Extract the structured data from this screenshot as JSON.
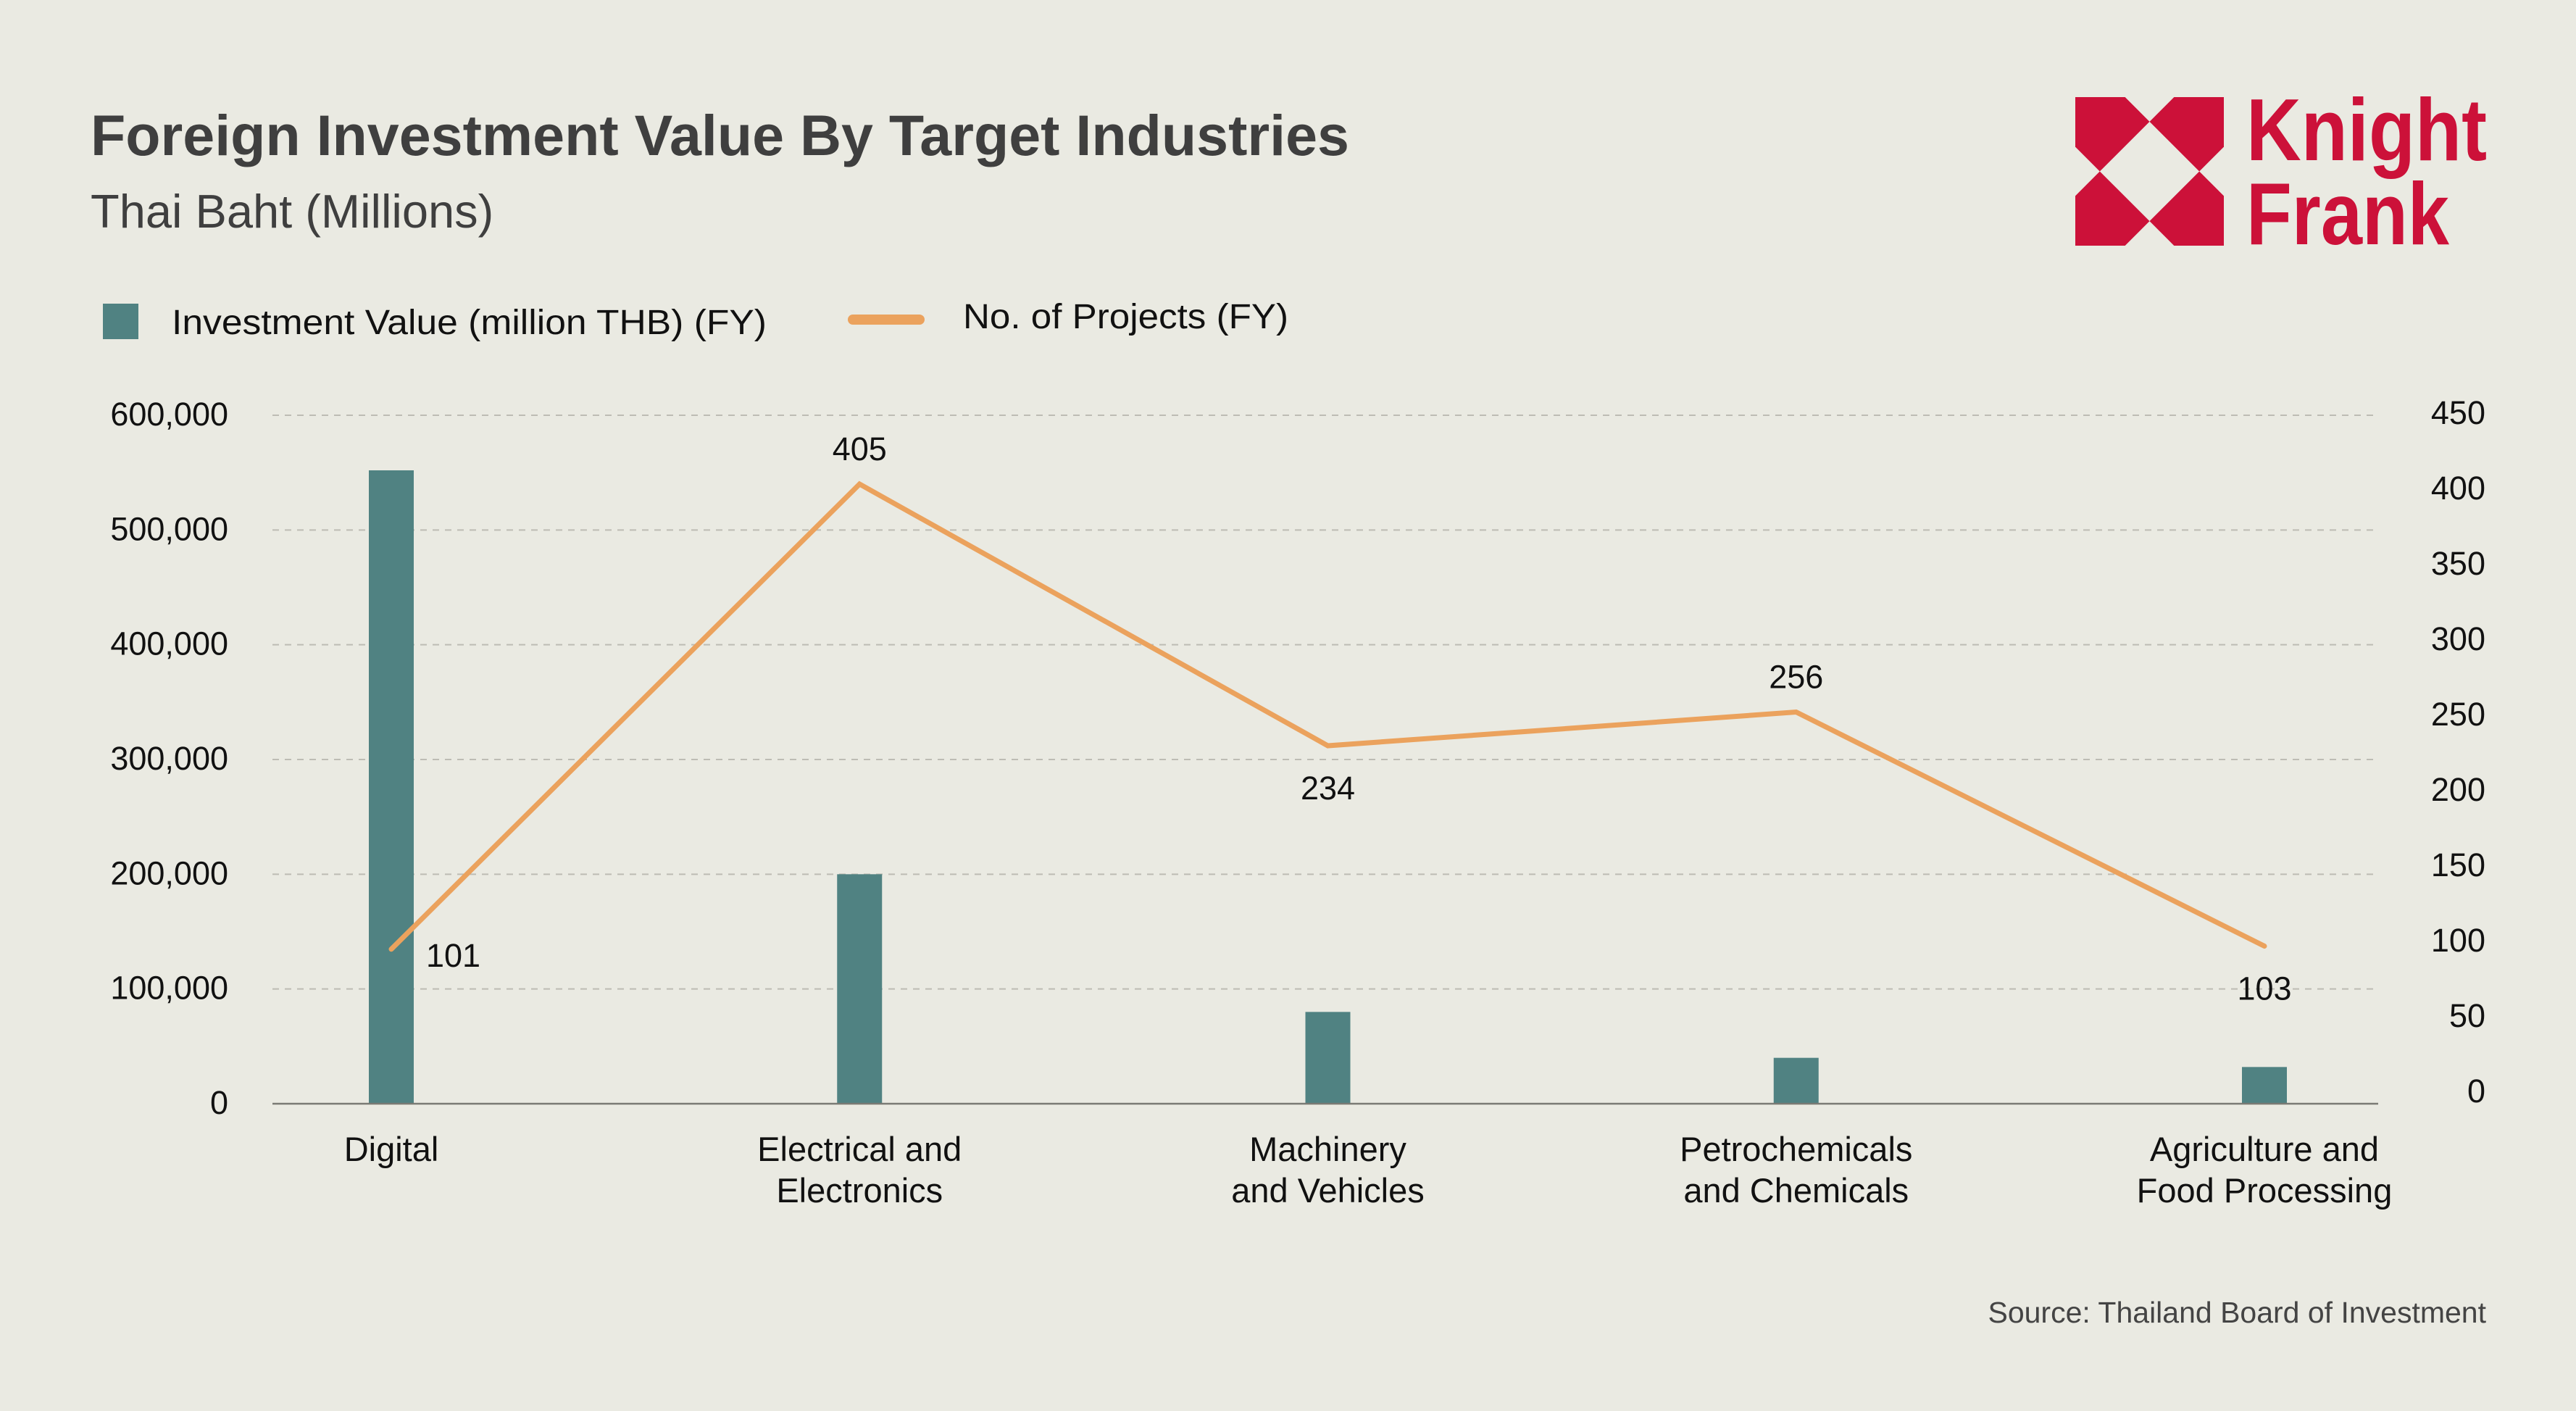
{
  "header": {
    "title": "Foreign Investment Value By Target Industries",
    "subtitle": "Thai Baht (Millions)"
  },
  "logo": {
    "line1": "Knight",
    "line2": "Frank",
    "color": "#cc1139"
  },
  "legend": [
    {
      "label": "Investment Value (million THB) (FY)",
      "type": "bar",
      "color": "#508282"
    },
    {
      "label": "No. of Projects (FY)",
      "type": "line",
      "color": "#eba25d"
    }
  ],
  "source": "Source: Thailand Board of Investment",
  "chart_data": {
    "type": "bar",
    "title": "Foreign Investment Value By Target Industries",
    "subtitle": "Thai Baht (Millions)",
    "categories": [
      [
        "Digital"
      ],
      [
        "Electrical and",
        "Electronics"
      ],
      [
        "Machinery",
        "and Vehicles"
      ],
      [
        "Petrochemicals",
        "and Chemicals"
      ],
      [
        "Agriculture and",
        "Food Processing"
      ]
    ],
    "series": [
      {
        "name": "Investment Value (million THB) (FY)",
        "type": "bar",
        "axis": "left",
        "color": "#508282",
        "values": [
          552000,
          200000,
          80000,
          40000,
          32000
        ]
      },
      {
        "name": "No. of Projects (FY)",
        "type": "line",
        "axis": "right",
        "color": "#eba25d",
        "values": [
          101,
          405,
          234,
          256,
          103
        ],
        "data_labels": [
          "101",
          "405",
          "234",
          "256",
          "103"
        ],
        "label_positions": [
          "right",
          "above",
          "below",
          "above",
          "below"
        ]
      }
    ],
    "y_left": {
      "min": 0,
      "max": 600000,
      "ticks": [
        0,
        100000,
        200000,
        300000,
        400000,
        500000,
        600000
      ],
      "tick_labels": [
        "0",
        "100,000",
        "200,000",
        "300,000",
        "400,000",
        "500,000",
        "600,000"
      ]
    },
    "y_right": {
      "min": 0,
      "max": 450,
      "ticks": [
        0,
        50,
        100,
        150,
        200,
        250,
        300,
        350,
        400,
        450
      ],
      "tick_labels": [
        "0",
        "50",
        "100",
        "150",
        "200",
        "250",
        "300",
        "350",
        "400",
        "450"
      ]
    },
    "xlabel": "",
    "ylabel": "",
    "grid": true,
    "legend_position": "top-left",
    "source": "Source: Thailand Board of Investment"
  }
}
